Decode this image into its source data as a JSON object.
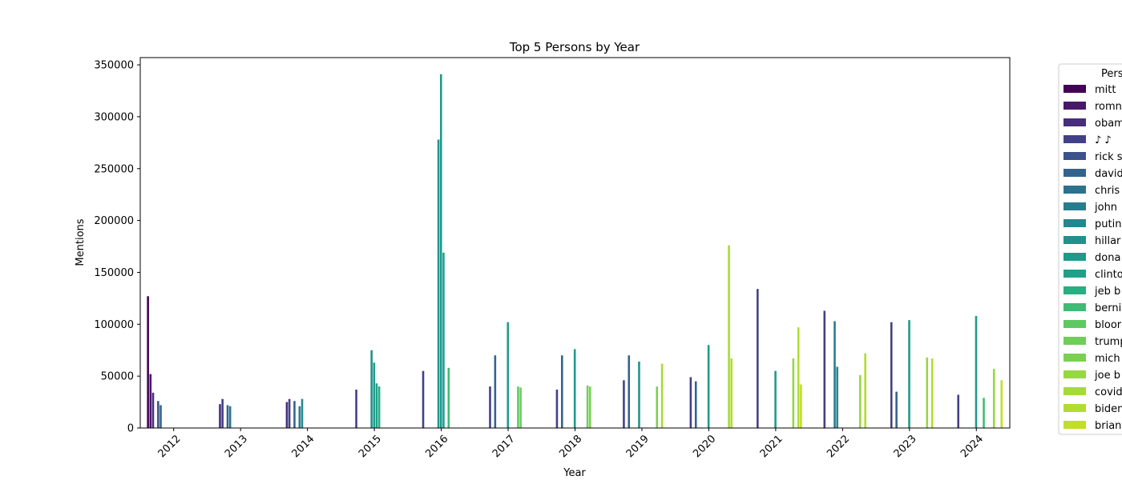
{
  "chart_data": {
    "type": "bar",
    "title": "Top 5 Persons by Year",
    "xlabel": "Year",
    "ylabel": "Mentions",
    "ylim": [
      0,
      357000
    ],
    "yticks": [
      0,
      50000,
      100000,
      150000,
      200000,
      250000,
      300000,
      350000
    ],
    "grid": false,
    "legend": {
      "title": "Pers",
      "placement": "outside-right"
    },
    "categories": [
      "2012",
      "2013",
      "2014",
      "2015",
      "2016",
      "2017",
      "2018",
      "2019",
      "2020",
      "2021",
      "2022",
      "2023",
      "2024"
    ],
    "series": [
      {
        "name": "mitt",
        "color": "#440154",
        "values": [
          127000,
          0,
          0,
          0,
          0,
          0,
          0,
          0,
          0,
          0,
          0,
          0,
          0
        ]
      },
      {
        "name": "romn",
        "color": "#48186a",
        "values": [
          52000,
          0,
          0,
          0,
          0,
          0,
          0,
          0,
          0,
          0,
          0,
          0,
          0
        ]
      },
      {
        "name": "obam",
        "color": "#472d7b",
        "values": [
          34000,
          23000,
          25000,
          0,
          0,
          0,
          0,
          0,
          0,
          0,
          0,
          0,
          0
        ]
      },
      {
        "name": "♪ ♪",
        "color": "#424086",
        "values": [
          0,
          28000,
          28000,
          37000,
          55000,
          40000,
          37000,
          46000,
          49000,
          134000,
          113000,
          102000,
          32000
        ]
      },
      {
        "name": "rick s",
        "color": "#3b528b",
        "values": [
          26000,
          0,
          0,
          0,
          0,
          0,
          0,
          0,
          0,
          0,
          0,
          0,
          0
        ]
      },
      {
        "name": "david",
        "color": "#33638d",
        "values": [
          22000,
          22000,
          26000,
          0,
          0,
          70000,
          70000,
          70000,
          45000,
          0,
          0,
          35000,
          0
        ]
      },
      {
        "name": "chris",
        "color": "#2c728e",
        "values": [
          0,
          21000,
          0,
          0,
          0,
          0,
          0,
          0,
          0,
          0,
          0,
          0,
          0
        ]
      },
      {
        "name": "john",
        "color": "#287c8e",
        "values": [
          0,
          0,
          21000,
          0,
          0,
          0,
          0,
          0,
          0,
          0,
          103000,
          0,
          0
        ]
      },
      {
        "name": "putin",
        "color": "#24868e",
        "values": [
          0,
          0,
          28000,
          0,
          0,
          0,
          0,
          0,
          0,
          0,
          59000,
          0,
          0
        ]
      },
      {
        "name": "hillar",
        "color": "#21918c",
        "values": [
          0,
          0,
          0,
          75000,
          278000,
          0,
          0,
          64000,
          0,
          0,
          0,
          0,
          0
        ]
      },
      {
        "name": "dona",
        "color": "#1f9a8a",
        "values": [
          0,
          0,
          0,
          63000,
          341000,
          102000,
          76000,
          0,
          80000,
          55000,
          0,
          104000,
          108000
        ]
      },
      {
        "name": "clinto",
        "color": "#1fa088",
        "values": [
          0,
          0,
          0,
          43000,
          169000,
          0,
          0,
          0,
          0,
          0,
          0,
          0,
          0
        ]
      },
      {
        "name": "jeb b",
        "color": "#28ae80",
        "values": [
          0,
          0,
          0,
          40000,
          0,
          0,
          0,
          0,
          0,
          0,
          0,
          0,
          0
        ]
      },
      {
        "name": "berni",
        "color": "#3fbc73",
        "values": [
          0,
          0,
          0,
          0,
          58000,
          0,
          0,
          0,
          0,
          0,
          0,
          0,
          29000
        ]
      },
      {
        "name": "bloor",
        "color": "#5ec962",
        "values": [
          0,
          0,
          0,
          0,
          0,
          40000,
          0,
          0,
          0,
          0,
          0,
          0,
          0
        ]
      },
      {
        "name": "trump",
        "color": "#6ece58",
        "values": [
          0,
          0,
          0,
          0,
          0,
          39000,
          41000,
          0,
          0,
          0,
          0,
          0,
          0
        ]
      },
      {
        "name": "mich",
        "color": "#7ad151",
        "values": [
          0,
          0,
          0,
          0,
          0,
          0,
          40000,
          40000,
          0,
          0,
          0,
          0,
          0
        ]
      },
      {
        "name": "joe b",
        "color": "#95d840",
        "values": [
          0,
          0,
          0,
          0,
          0,
          0,
          0,
          0,
          0,
          67000,
          51000,
          68000,
          57000
        ]
      },
      {
        "name": "covid",
        "color": "#a5db36",
        "values": [
          0,
          0,
          0,
          0,
          0,
          0,
          0,
          62000,
          176000,
          0,
          0,
          0,
          0
        ]
      },
      {
        "name": "biden",
        "color": "#b0dd2f",
        "values": [
          0,
          0,
          0,
          0,
          0,
          0,
          0,
          0,
          67000,
          97000,
          72000,
          67000,
          0
        ]
      },
      {
        "name": "brian",
        "color": "#c2df23",
        "values": [
          0,
          0,
          0,
          0,
          0,
          0,
          0,
          0,
          0,
          42000,
          0,
          0,
          46000
        ]
      }
    ]
  }
}
